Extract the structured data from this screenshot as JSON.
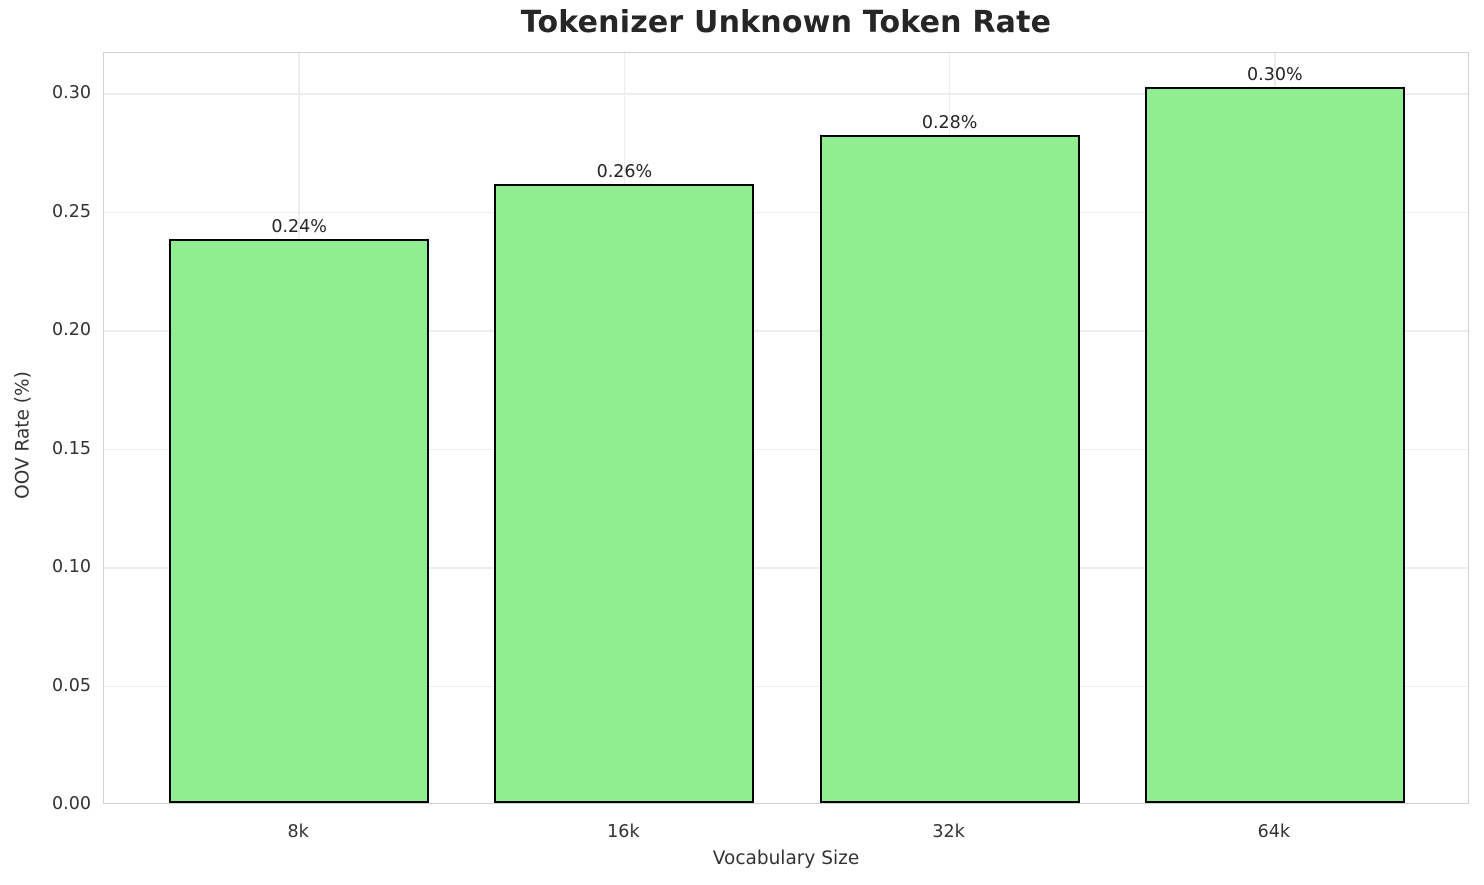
{
  "chart_data": {
    "type": "bar",
    "title": "Tokenizer Unknown Token Rate",
    "xlabel": "Vocabulary Size",
    "ylabel": "OOV Rate (%)",
    "categories": [
      "8k",
      "16k",
      "32k",
      "64k"
    ],
    "values": [
      0.238,
      0.261,
      0.282,
      0.302
    ],
    "bar_labels": [
      "0.24%",
      "0.26%",
      "0.28%",
      "0.30%"
    ],
    "yticks": [
      0.0,
      0.05,
      0.1,
      0.15,
      0.2,
      0.25,
      0.3
    ],
    "ytick_labels": [
      "0.00",
      "0.05",
      "0.10",
      "0.15",
      "0.20",
      "0.25",
      "0.30"
    ],
    "ylim": [
      0,
      0.3173
    ],
    "grid": true,
    "legend_position": "none",
    "bar_color": "#90EE90",
    "bar_edge_color": "#000000",
    "grid_color": "#ededed",
    "spine_color": "#d2d2d2",
    "tick_text_color": "#333333",
    "title_color": "#262626"
  }
}
